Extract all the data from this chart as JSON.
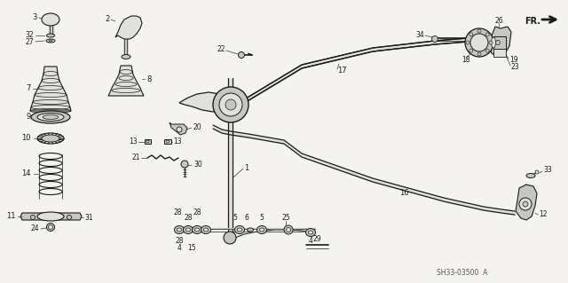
{
  "bg_color": "#f5f3ef",
  "line_color": "#1a1a1a",
  "text_color": "#1a1a1a",
  "part_number": "SH33-03500  A",
  "fig_width": 6.4,
  "fig_height": 3.19,
  "dpi": 100
}
